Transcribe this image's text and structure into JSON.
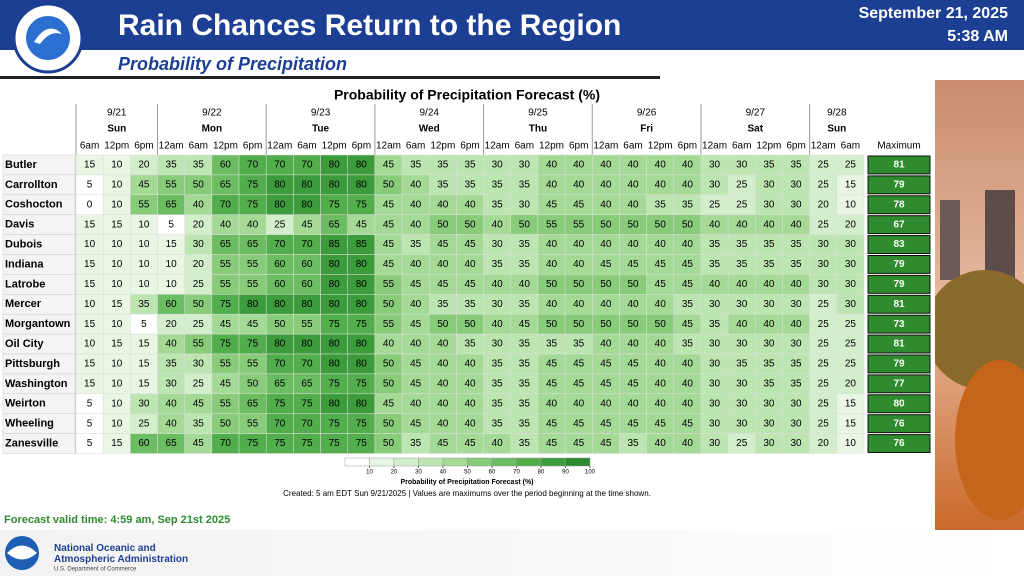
{
  "header": {
    "title": "Rain Chances Return to the Region",
    "subtitle": "Probability of Precipitation",
    "date": "September 21, 2025",
    "time": "5:38 AM"
  },
  "table": {
    "title": "Probability of Precipitation Forecast (%)",
    "columns": [
      {
        "date": "9/21",
        "day": "Sun",
        "times": [
          "6am",
          "12pm",
          "6pm"
        ]
      },
      {
        "date": "9/22",
        "day": "Mon",
        "times": [
          "12am",
          "6am",
          "12pm",
          "6pm"
        ]
      },
      {
        "date": "9/23",
        "day": "Tue",
        "times": [
          "12am",
          "6am",
          "12pm",
          "6pm"
        ]
      },
      {
        "date": "9/24",
        "day": "Wed",
        "times": [
          "12am",
          "6am",
          "12pm",
          "6pm"
        ]
      },
      {
        "date": "9/25",
        "day": "Thu",
        "times": [
          "12am",
          "6am",
          "12pm",
          "6pm"
        ]
      },
      {
        "date": "9/26",
        "day": "Fri",
        "times": [
          "12am",
          "6am",
          "12pm",
          "6pm"
        ]
      },
      {
        "date": "9/27",
        "day": "Sat",
        "times": [
          "12am",
          "6am",
          "12pm",
          "6pm"
        ]
      },
      {
        "date": "9/28",
        "day": "Sun",
        "times": [
          "12am",
          "6am"
        ]
      }
    ],
    "maximum_header": "Maximum",
    "rows": [
      {
        "name": "Butler",
        "values": [
          15,
          10,
          20,
          35,
          35,
          60,
          70,
          70,
          70,
          80,
          80,
          45,
          35,
          35,
          35,
          30,
          30,
          40,
          40,
          40,
          40,
          40,
          40,
          30,
          30,
          35,
          35,
          25,
          25
        ],
        "maximum": 81
      },
      {
        "name": "Carrollton",
        "values": [
          5,
          10,
          45,
          55,
          50,
          65,
          75,
          80,
          80,
          80,
          80,
          50,
          40,
          35,
          35,
          35,
          35,
          40,
          40,
          40,
          40,
          40,
          40,
          30,
          25,
          30,
          30,
          25,
          15
        ],
        "maximum": 79
      },
      {
        "name": "Coshocton",
        "values": [
          0,
          10,
          55,
          65,
          40,
          70,
          75,
          80,
          80,
          75,
          75,
          45,
          40,
          40,
          40,
          35,
          30,
          45,
          45,
          40,
          40,
          35,
          35,
          25,
          25,
          30,
          30,
          20,
          10
        ],
        "maximum": 78
      },
      {
        "name": "Davis",
        "values": [
          15,
          15,
          10,
          5,
          20,
          40,
          40,
          25,
          45,
          65,
          45,
          45,
          40,
          50,
          50,
          40,
          50,
          55,
          55,
          50,
          50,
          50,
          50,
          40,
          40,
          40,
          40,
          25,
          20
        ],
        "maximum": 67
      },
      {
        "name": "Dubois",
        "values": [
          10,
          10,
          10,
          15,
          30,
          65,
          65,
          70,
          70,
          85,
          85,
          45,
          35,
          45,
          45,
          30,
          35,
          40,
          40,
          40,
          40,
          40,
          40,
          35,
          35,
          35,
          35,
          30,
          30
        ],
        "maximum": 83
      },
      {
        "name": "Indiana",
        "values": [
          15,
          10,
          10,
          10,
          20,
          55,
          55,
          60,
          60,
          80,
          80,
          45,
          40,
          40,
          40,
          35,
          35,
          40,
          40,
          45,
          45,
          45,
          45,
          35,
          35,
          35,
          35,
          30,
          30
        ],
        "maximum": 79
      },
      {
        "name": "Latrobe",
        "values": [
          15,
          10,
          10,
          10,
          25,
          55,
          55,
          60,
          60,
          80,
          80,
          55,
          45,
          45,
          45,
          40,
          40,
          50,
          50,
          50,
          50,
          45,
          45,
          40,
          40,
          40,
          40,
          30,
          30
        ],
        "maximum": 79
      },
      {
        "name": "Mercer",
        "values": [
          10,
          15,
          35,
          60,
          50,
          75,
          80,
          80,
          80,
          80,
          80,
          50,
          40,
          35,
          35,
          30,
          35,
          40,
          40,
          40,
          40,
          40,
          35,
          30,
          30,
          30,
          30,
          25,
          30
        ],
        "maximum": 81
      },
      {
        "name": "Morgantown",
        "values": [
          15,
          10,
          5,
          20,
          25,
          45,
          45,
          50,
          55,
          75,
          75,
          55,
          45,
          50,
          50,
          40,
          45,
          50,
          50,
          50,
          50,
          50,
          45,
          35,
          40,
          40,
          40,
          25,
          25
        ],
        "maximum": 73
      },
      {
        "name": "Oil City",
        "values": [
          10,
          15,
          15,
          40,
          55,
          75,
          75,
          80,
          80,
          80,
          80,
          40,
          40,
          40,
          35,
          30,
          35,
          35,
          35,
          40,
          40,
          40,
          35,
          30,
          30,
          30,
          30,
          25,
          25
        ],
        "maximum": 81
      },
      {
        "name": "Pittsburgh",
        "values": [
          15,
          10,
          15,
          35,
          30,
          55,
          55,
          70,
          70,
          80,
          80,
          50,
          45,
          40,
          40,
          35,
          35,
          45,
          45,
          45,
          45,
          40,
          40,
          30,
          35,
          35,
          35,
          25,
          25
        ],
        "maximum": 79
      },
      {
        "name": "Washington",
        "values": [
          15,
          10,
          15,
          30,
          25,
          45,
          50,
          65,
          65,
          75,
          75,
          50,
          45,
          40,
          40,
          35,
          35,
          45,
          45,
          45,
          45,
          40,
          40,
          30,
          30,
          35,
          35,
          25,
          20
        ],
        "maximum": 77
      },
      {
        "name": "Weirton",
        "values": [
          5,
          10,
          30,
          40,
          45,
          55,
          65,
          75,
          75,
          80,
          80,
          45,
          40,
          40,
          40,
          35,
          35,
          40,
          40,
          40,
          40,
          40,
          40,
          30,
          30,
          30,
          30,
          25,
          15
        ],
        "maximum": 80
      },
      {
        "name": "Wheeling",
        "values": [
          5,
          10,
          25,
          40,
          35,
          50,
          55,
          70,
          70,
          75,
          75,
          50,
          45,
          40,
          40,
          35,
          35,
          45,
          45,
          45,
          45,
          45,
          45,
          30,
          30,
          30,
          30,
          25,
          15
        ],
        "maximum": 76
      },
      {
        "name": "Zanesville",
        "values": [
          5,
          15,
          60,
          65,
          45,
          70,
          75,
          75,
          75,
          75,
          75,
          50,
          35,
          45,
          45,
          40,
          35,
          45,
          45,
          45,
          35,
          40,
          40,
          30,
          25,
          30,
          30,
          20,
          10
        ],
        "maximum": 76
      }
    ],
    "colorbar": {
      "ticks": [
        10,
        20,
        30,
        40,
        50,
        60,
        70,
        80,
        90,
        100
      ],
      "label": "Probability of Precipitation Forecast (%)",
      "colors": [
        "#ffffff",
        "#e8f6e3",
        "#d3eecb",
        "#bde5b1",
        "#a4da96",
        "#88cc7a",
        "#6cbd61",
        "#52ad4c",
        "#3c9c3b",
        "#2a8a2e"
      ]
    },
    "note": "Created: 5 am EDT Sun 9/21/2025  |  Values are maximums over the period beginning at the time shown.",
    "valid_time": "Forecast valid time: 4:59 am, Sep 21st 2025"
  },
  "footer": {
    "agency": "National Oceanic and Atmospheric Administration",
    "department": "U.S. Department of Commerce"
  }
}
